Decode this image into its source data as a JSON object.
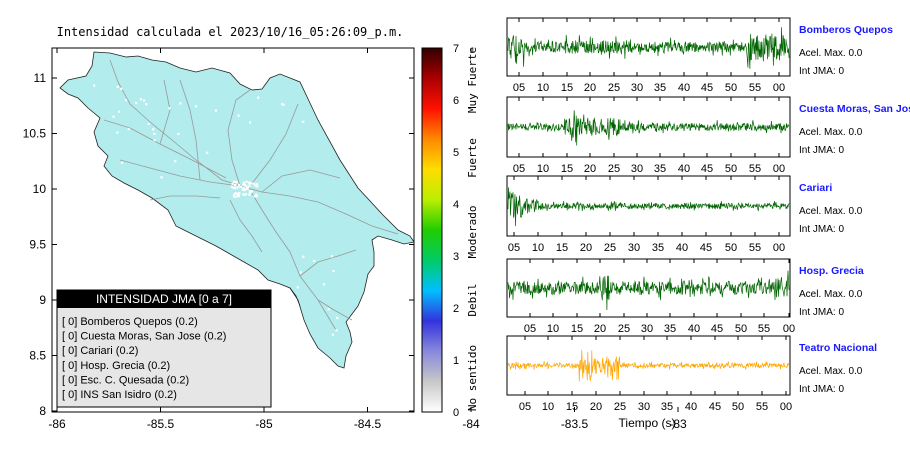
{
  "map": {
    "title": "Intensidad calculada el 2023/10/16_05:26:09_p.m.",
    "x_ticks": [
      "-86",
      "-85.5",
      "-85",
      "-84.5",
      "-84",
      "-83.5",
      "-83"
    ],
    "y_ticks": [
      "11",
      "10.5",
      "10",
      "9.5",
      "9",
      "8.5",
      "8"
    ],
    "land_color": "#b2ecec",
    "legend": {
      "header": "INTENSIDAD JMA [0 a 7]",
      "items": [
        "[ 0] Bomberos Quepos (0.2)",
        "[ 0] Cuesta Moras, San Jose (0.2)",
        "[ 0] Cariari (0.2)",
        "[ 0] Hosp. Grecia (0.2)",
        "[ 0] Esc. C. Quesada (0.2)",
        "[ 0] INS San Isidro (0.2)"
      ]
    }
  },
  "colorbar": {
    "ticks": [
      "7",
      "6",
      "5",
      "4",
      "3",
      "2",
      "1",
      "0"
    ],
    "labels": [
      "Muy Fuerte",
      "Fuerte",
      "Moderado",
      "Debil",
      "No sentido"
    ],
    "stops": [
      "#ffffff",
      "#c8c8c8",
      "#8888dd",
      "#3333dd",
      "#00bfff",
      "#00cc66",
      "#22cc00",
      "#bbee00",
      "#ffdd00",
      "#ff8800",
      "#ff1100",
      "#aa0000",
      "#300000"
    ]
  },
  "chart_data": {
    "type": "line",
    "xlabel": "Tiempo (s)",
    "x_ticks": [
      "05",
      "10",
      "15",
      "20",
      "25",
      "30",
      "35",
      "40",
      "45",
      "50",
      "55",
      "00"
    ],
    "series": [
      {
        "name": "Bomberos Quepos",
        "accel_label": "Acel. Max. 0.0",
        "int_label": "Int JMA: 0",
        "color": "#006400"
      },
      {
        "name": "Cuesta Moras, San Jose",
        "accel_label": "Acel. Max. 0.0",
        "int_label": "Int JMA: 0",
        "color": "#006400"
      },
      {
        "name": "Cariari",
        "accel_label": "Acel. Max. 0.0",
        "int_label": "Int JMA: 0",
        "color": "#006400"
      },
      {
        "name": "Hosp. Grecia",
        "accel_label": "Acel. Max. 0.0",
        "int_label": "Int JMA: 0",
        "color": "#006400"
      },
      {
        "name": "Teatro Nacional",
        "accel_label": "Acel. Max. 0.0",
        "int_label": "Int JMA: 0",
        "color": "#ffa500"
      }
    ]
  }
}
